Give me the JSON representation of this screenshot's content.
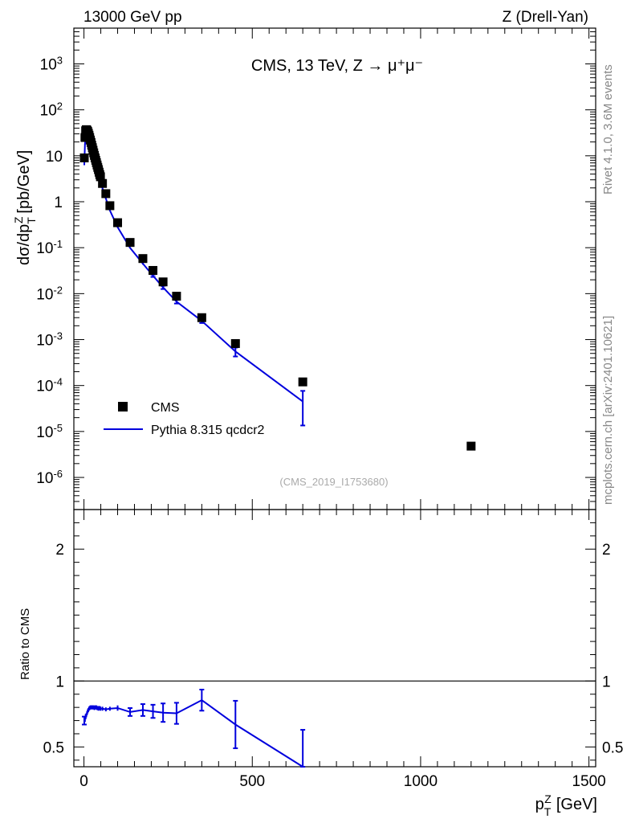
{
  "header": {
    "left": "13000 GeV pp",
    "right": "Z (Drell-Yan)"
  },
  "side_text": {
    "rivet": "Rivet 4.1.0,  3.6M events",
    "mcplots": "mcplots.cern.ch [arXiv:2401.10621]"
  },
  "chart_data": [
    {
      "type": "scatter",
      "panel": "main",
      "title": "CMS, 13 TeV, Z → μ⁺μ⁻",
      "watermark": "(CMS_2019_I1753680)",
      "ylabel": "dσ/dp_T^Z [pb/GeV]",
      "yscale": "log",
      "ylim": [
        2e-07,
        6000
      ],
      "xlim": [
        -30,
        1520
      ],
      "y_ticks": [
        "10^-6",
        "10^-5",
        "10^-4",
        "10^-3",
        "10^-2",
        "10^-1",
        "1",
        "10",
        "10^2",
        "10^3"
      ],
      "legend": {
        "placement": "bottom-left",
        "entries": [
          "CMS",
          "Pythia 8.315 qcdcr2"
        ]
      },
      "series": [
        {
          "name": "CMS",
          "style": "markers",
          "color": "#000000",
          "x": [
            1,
            3,
            5,
            7,
            9,
            11,
            13,
            15,
            17,
            19,
            21,
            23,
            25,
            27,
            29,
            31,
            33,
            35,
            37,
            39,
            41,
            43,
            45,
            47,
            49,
            55,
            65,
            77,
            100,
            137,
            175,
            205,
            235,
            275,
            350,
            450,
            650,
            1150
          ],
          "y": [
            9.0,
            25.0,
            35.0,
            37.0,
            36.0,
            34.0,
            31.0,
            28.0,
            25.0,
            22.0,
            19.5,
            17.0,
            15.0,
            13.2,
            11.6,
            10.2,
            9.0,
            8.0,
            7.1,
            6.3,
            5.6,
            5.0,
            4.4,
            3.9,
            3.5,
            2.5,
            1.5,
            0.82,
            0.35,
            0.13,
            0.058,
            0.032,
            0.018,
            0.0088,
            0.003,
            0.00082,
            0.00012,
            4.8e-06
          ]
        },
        {
          "name": "Pythia 8.315 qcdcr2",
          "style": "line",
          "color": "#0000dd",
          "x": [
            1,
            3,
            5,
            7,
            9,
            11,
            13,
            15,
            17,
            19,
            21,
            23,
            25,
            27,
            29,
            31,
            33,
            35,
            37,
            39,
            41,
            43,
            45,
            47,
            49,
            55,
            65,
            77,
            100,
            137,
            175,
            205,
            235,
            275,
            350,
            450,
            650
          ],
          "y": [
            6.3,
            17.8,
            25.5,
            27.5,
            27.2,
            26.2,
            24.2,
            22.1,
            19.9,
            17.6,
            15.5,
            13.6,
            12.0,
            10.6,
            9.3,
            8.1,
            7.2,
            6.4,
            5.7,
            5.0,
            4.45,
            3.95,
            3.5,
            3.1,
            2.77,
            1.97,
            1.18,
            0.647,
            0.279,
            0.099,
            0.045,
            0.0246,
            0.0137,
            0.0067,
            0.00255,
            0.00055,
            4.5e-05
          ],
          "yerr_rel": [
            0.01,
            0.01,
            0.01,
            0.01,
            0.01,
            0.01,
            0.01,
            0.01,
            0.01,
            0.01,
            0.01,
            0.01,
            0.01,
            0.01,
            0.01,
            0.01,
            0.01,
            0.01,
            0.01,
            0.01,
            0.01,
            0.01,
            0.01,
            0.01,
            0.01,
            0.01,
            0.01,
            0.01,
            0.02,
            0.02,
            0.05,
            0.06,
            0.08,
            0.09,
            0.1,
            0.22,
            0.7
          ]
        }
      ]
    },
    {
      "type": "line",
      "panel": "ratio",
      "ylabel": "Ratio to CMS",
      "xlabel": "p_T^Z [GeV]",
      "ylim": [
        0.35,
        2.3
      ],
      "y_ticks": [
        "0.5",
        "1",
        "2"
      ],
      "x_ticks": [
        "0",
        "500",
        "1000",
        "1500"
      ],
      "reference_line": 1,
      "series": [
        {
          "name": "Pythia 8.315 qcdcr2",
          "color": "#0000dd",
          "x": [
            1,
            3,
            5,
            7,
            9,
            11,
            13,
            15,
            17,
            19,
            21,
            23,
            25,
            27,
            29,
            31,
            33,
            35,
            37,
            39,
            41,
            43,
            45,
            47,
            49,
            55,
            65,
            77,
            100,
            137,
            175,
            205,
            235,
            275,
            350,
            450,
            650
          ],
          "y": [
            0.7,
            0.71,
            0.73,
            0.74,
            0.755,
            0.77,
            0.78,
            0.79,
            0.795,
            0.8,
            0.8,
            0.8,
            0.8,
            0.8,
            0.8,
            0.795,
            0.8,
            0.8,
            0.8,
            0.795,
            0.795,
            0.79,
            0.795,
            0.795,
            0.79,
            0.79,
            0.785,
            0.79,
            0.795,
            0.765,
            0.78,
            0.77,
            0.76,
            0.755,
            0.855,
            0.67,
            0.35
          ],
          "yerr": [
            0.03,
            0.02,
            0.02,
            0.015,
            0.015,
            0.015,
            0.015,
            0.015,
            0.015,
            0.015,
            0.015,
            0.015,
            0.015,
            0.015,
            0.015,
            0.015,
            0.015,
            0.015,
            0.015,
            0.015,
            0.015,
            0.015,
            0.015,
            0.015,
            0.015,
            0.015,
            0.015,
            0.015,
            0.02,
            0.03,
            0.045,
            0.05,
            0.07,
            0.08,
            0.08,
            0.18,
            0.28
          ]
        }
      ]
    }
  ]
}
